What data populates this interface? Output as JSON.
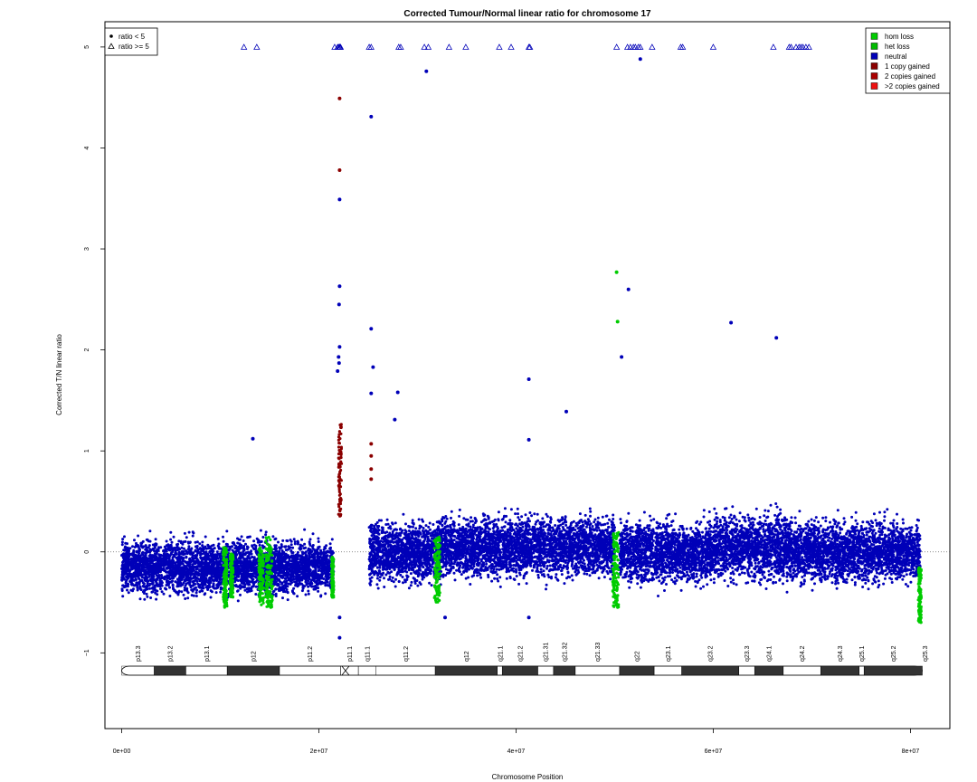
{
  "chart_data": {
    "type": "scatter",
    "title": "Corrected Tumour/Normal linear ratio for chromosome  17",
    "xlabel": "Chromosome Position",
    "ylabel": "Corrected T/N linear ratio",
    "xlim": [
      -1700000,
      84000000
    ],
    "ylim": [
      -1.75,
      5.25
    ],
    "x_ticks": [
      0,
      20000000,
      40000000,
      60000000,
      80000000
    ],
    "x_tick_labels": [
      "0e+00",
      "2e+07",
      "4e+07",
      "6e+07",
      "8e+07"
    ],
    "y_ticks": [
      -1,
      0,
      1,
      2,
      3,
      4,
      5
    ],
    "y_tick_labels": [
      "−1",
      "0",
      "1",
      "2",
      "3",
      "4",
      "5"
    ],
    "reference_line": 0,
    "symbol_legend": {
      "placement": "top-left",
      "entries": [
        {
          "symbol": "filled-circle",
          "label": "ratio < 5"
        },
        {
          "symbol": "open-triangle",
          "label": "ratio >= 5"
        }
      ]
    },
    "color_legend": {
      "placement": "top-right",
      "entries": [
        {
          "label": "hom loss",
          "color": "#00cc00"
        },
        {
          "label": "het loss",
          "color": "#00bb00"
        },
        {
          "label": "neutral",
          "color": "#0000b8"
        },
        {
          "label": "1 copy gained",
          "color": "#8b0000"
        },
        {
          "label": "2 copies gained",
          "color": "#aa0000"
        },
        {
          "label": ">2 copies gained",
          "color": "#ee1111"
        }
      ]
    },
    "density_segments": [
      {
        "x_start": 0,
        "x_end": 10000000,
        "y_mean": -0.15,
        "y_spread": 0.22,
        "color": "#0000b8"
      },
      {
        "x_start": 10000000,
        "x_end": 21500000,
        "y_mean": -0.15,
        "y_spread": 0.22,
        "color": "#0000b8"
      },
      {
        "x_start": 25100000,
        "x_end": 32000000,
        "y_mean": 0.0,
        "y_spread": 0.25,
        "color": "#0000b8"
      },
      {
        "x_start": 32000000,
        "x_end": 50000000,
        "y_mean": 0.05,
        "y_spread": 0.25,
        "color": "#0000b8"
      },
      {
        "x_start": 50500000,
        "x_end": 60000000,
        "y_mean": 0.0,
        "y_spread": 0.25,
        "color": "#0000b8"
      },
      {
        "x_start": 60000000,
        "x_end": 68000000,
        "y_mean": 0.05,
        "y_spread": 0.27,
        "color": "#0000b8"
      },
      {
        "x_start": 68000000,
        "x_end": 81000000,
        "y_mean": 0.0,
        "y_spread": 0.25,
        "color": "#0000b8"
      }
    ],
    "loss_segments": [
      {
        "x_start": 10300000,
        "x_end": 10700000,
        "y_min": -0.55,
        "y_max": 0.05
      },
      {
        "x_start": 11000000,
        "x_end": 11300000,
        "y_min": -0.45,
        "y_max": 0.0
      },
      {
        "x_start": 13900000,
        "x_end": 14400000,
        "y_min": -0.55,
        "y_max": 0.05
      },
      {
        "x_start": 14600000,
        "x_end": 15300000,
        "y_min": -0.55,
        "y_max": 0.15
      },
      {
        "x_start": 21300000,
        "x_end": 21500000,
        "y_min": -0.45,
        "y_max": -0.05
      },
      {
        "x_start": 31700000,
        "x_end": 32300000,
        "y_min": -0.5,
        "y_max": 0.15
      },
      {
        "x_start": 49800000,
        "x_end": 50400000,
        "y_min": -0.55,
        "y_max": 0.2
      },
      {
        "x_start": 80800000,
        "x_end": 81100000,
        "y_min": -0.7,
        "y_max": -0.15
      }
    ],
    "gain_segment": {
      "x_start": 22000000,
      "x_end": 22300000,
      "y_min": 0.3,
      "y_max": 1.3
    },
    "highlighted_points": [
      {
        "x": 13300000,
        "y": 1.12,
        "class": "neutral"
      },
      {
        "x": 22100000,
        "y": 4.49,
        "class": "1 copy gained"
      },
      {
        "x": 22100000,
        "y": 3.78,
        "class": "1 copy gained"
      },
      {
        "x": 22100000,
        "y": 3.49,
        "class": "neutral"
      },
      {
        "x": 22100000,
        "y": 2.63,
        "class": "neutral"
      },
      {
        "x": 22050000,
        "y": 2.45,
        "class": "neutral"
      },
      {
        "x": 22100000,
        "y": 2.03,
        "class": "neutral"
      },
      {
        "x": 22000000,
        "y": 1.93,
        "class": "neutral"
      },
      {
        "x": 22050000,
        "y": 1.87,
        "class": "neutral"
      },
      {
        "x": 21900000,
        "y": 1.79,
        "class": "neutral"
      },
      {
        "x": 22100000,
        "y": -0.65,
        "class": "neutral"
      },
      {
        "x": 22100000,
        "y": -0.85,
        "class": "neutral"
      },
      {
        "x": 25300000,
        "y": 4.31,
        "class": "neutral"
      },
      {
        "x": 25300000,
        "y": 2.21,
        "class": "neutral"
      },
      {
        "x": 25500000,
        "y": 1.83,
        "class": "neutral"
      },
      {
        "x": 25300000,
        "y": 1.57,
        "class": "neutral"
      },
      {
        "x": 28000000,
        "y": 1.58,
        "class": "neutral"
      },
      {
        "x": 27700000,
        "y": 1.31,
        "class": "neutral"
      },
      {
        "x": 25300000,
        "y": 1.07,
        "class": "1 copy gained"
      },
      {
        "x": 25300000,
        "y": 0.95,
        "class": "1 copy gained"
      },
      {
        "x": 25300000,
        "y": 0.82,
        "class": "1 copy gained"
      },
      {
        "x": 25300000,
        "y": 0.72,
        "class": "1 copy gained"
      },
      {
        "x": 30900000,
        "y": 4.76,
        "class": "neutral"
      },
      {
        "x": 41300000,
        "y": 1.71,
        "class": "neutral"
      },
      {
        "x": 41300000,
        "y": 1.11,
        "class": "neutral"
      },
      {
        "x": 45100000,
        "y": 1.39,
        "class": "neutral"
      },
      {
        "x": 41300000,
        "y": -0.65,
        "class": "neutral"
      },
      {
        "x": 50200000,
        "y": 2.77,
        "class": "hom loss"
      },
      {
        "x": 50300000,
        "y": 2.28,
        "class": "hom loss"
      },
      {
        "x": 50700000,
        "y": 1.93,
        "class": "neutral"
      },
      {
        "x": 51400000,
        "y": 2.6,
        "class": "neutral"
      },
      {
        "x": 52600000,
        "y": 4.88,
        "class": "neutral"
      },
      {
        "x": 61800000,
        "y": 2.27,
        "class": "neutral"
      },
      {
        "x": 66400000,
        "y": 2.12,
        "class": "neutral"
      },
      {
        "x": 32800000,
        "y": -0.65,
        "class": "neutral"
      }
    ],
    "capped_points_x": [
      12400000,
      13700000,
      21600000,
      21900000,
      22000000,
      22100000,
      22150000,
      22200000,
      25100000,
      25300000,
      28100000,
      28300000,
      30700000,
      31100000,
      33200000,
      34900000,
      38300000,
      39500000,
      41300000,
      41400000,
      50200000,
      51300000,
      51600000,
      51900000,
      52100000,
      52400000,
      52600000,
      53800000,
      56700000,
      56900000,
      60000000,
      66100000,
      67700000,
      67900000,
      68400000,
      68700000,
      68900000,
      69100000,
      69400000,
      69700000,
      76600000,
      78200000,
      80000000,
      81200000
    ],
    "cytobands": [
      {
        "name": "p13.3",
        "start": 0,
        "end": 3300000,
        "stain": "white",
        "centromere": false
      },
      {
        "name": "p13.2",
        "start": 3300000,
        "end": 6500000,
        "stain": "dark",
        "centromere": false
      },
      {
        "name": "p13.1",
        "start": 6500000,
        "end": 10700000,
        "stain": "white",
        "centromere": false
      },
      {
        "name": "p12",
        "start": 10700000,
        "end": 16000000,
        "stain": "dark",
        "centromere": false
      },
      {
        "name": "p11.2",
        "start": 16000000,
        "end": 22200000,
        "stain": "white",
        "centromere": false
      },
      {
        "name": "p11.1",
        "start": 22200000,
        "end": 24000000,
        "stain": "white",
        "centromere": true
      },
      {
        "name": "q11.1",
        "start": 24000000,
        "end": 25800000,
        "stain": "white",
        "centromere": true
      },
      {
        "name": "q11.2",
        "start": 25800000,
        "end": 31800000,
        "stain": "white",
        "centromere": false
      },
      {
        "name": "q12",
        "start": 31800000,
        "end": 38100000,
        "stain": "dark",
        "centromere": false
      },
      {
        "name": "q21.1",
        "start": 38100000,
        "end": 38600000,
        "stain": "white",
        "centromere": false
      },
      {
        "name": "q21.2",
        "start": 38600000,
        "end": 42200000,
        "stain": "dark",
        "centromere": false
      },
      {
        "name": "q21.31",
        "start": 42200000,
        "end": 43800000,
        "stain": "white",
        "centromere": false
      },
      {
        "name": "q21.32",
        "start": 43800000,
        "end": 46000000,
        "stain": "dark",
        "centromere": false
      },
      {
        "name": "q21.33",
        "start": 46000000,
        "end": 50500000,
        "stain": "white",
        "centromere": false
      },
      {
        "name": "q22",
        "start": 50500000,
        "end": 54000000,
        "stain": "dark",
        "centromere": false
      },
      {
        "name": "q23.1",
        "start": 54000000,
        "end": 56800000,
        "stain": "white",
        "centromere": false
      },
      {
        "name": "q23.2",
        "start": 56800000,
        "end": 62600000,
        "stain": "dark",
        "centromere": false
      },
      {
        "name": "q23.3",
        "start": 62600000,
        "end": 64200000,
        "stain": "white",
        "centromere": false
      },
      {
        "name": "q24.1",
        "start": 64200000,
        "end": 67100000,
        "stain": "dark",
        "centromere": false
      },
      {
        "name": "q24.2",
        "start": 67100000,
        "end": 70900000,
        "stain": "white",
        "centromere": false
      },
      {
        "name": "q24.3",
        "start": 70900000,
        "end": 74800000,
        "stain": "dark",
        "centromere": false
      },
      {
        "name": "q25.1",
        "start": 74800000,
        "end": 75300000,
        "stain": "white",
        "centromere": false
      },
      {
        "name": "q25.2",
        "start": 75300000,
        "end": 81200000,
        "stain": "dark",
        "centromere": false
      },
      {
        "name": "q25.3",
        "start": 81200000,
        "end": 81195210,
        "stain": "white",
        "centromere": false
      }
    ]
  }
}
